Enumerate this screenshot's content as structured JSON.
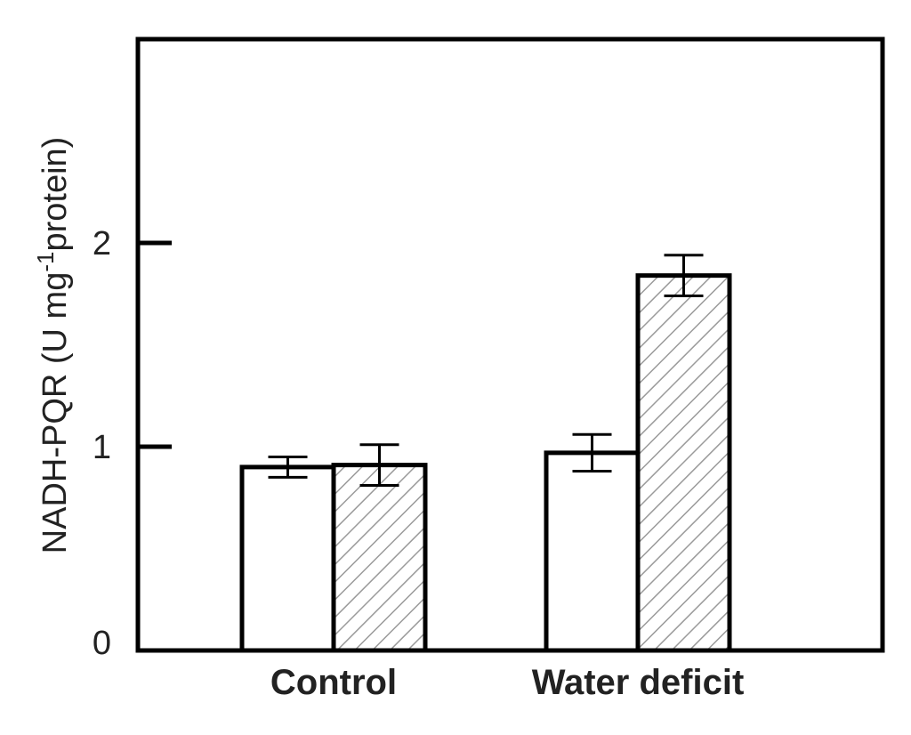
{
  "chart_data": {
    "type": "bar",
    "categories": [
      "Control",
      "Water deficit"
    ],
    "series": [
      {
        "values": [
          0.9,
          0.97
        ],
        "errors": [
          0.05,
          0.09
        ],
        "fill": "#ffffff",
        "pattern": "none"
      },
      {
        "values": [
          0.91,
          1.84
        ],
        "errors": [
          0.1,
          0.1
        ],
        "fill": "#ffffff",
        "pattern": "diagonal-hatch"
      }
    ],
    "ylim": [
      0,
      3
    ],
    "yticks": [
      0,
      1,
      2
    ],
    "ylabel_main": "NADH-PQR (U mg",
    "ylabel_sup": "-1",
    "ylabel_end": "protein)",
    "xlabel": "",
    "grid": false,
    "colors": {
      "axis": "#000000",
      "hatch": "#9a9a9a",
      "text": "#222222"
    }
  }
}
